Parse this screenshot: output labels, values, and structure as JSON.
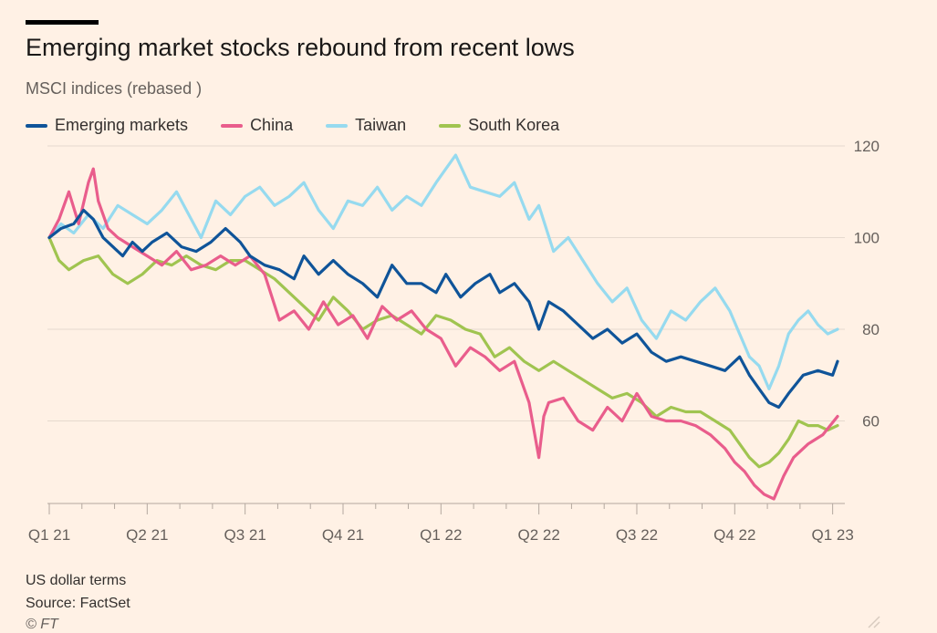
{
  "header": {
    "title": "Emerging market stocks rebound from recent lows",
    "subtitle": "MSCI indices (rebased )"
  },
  "footer": {
    "note": "US dollar terms",
    "source": "Source: FactSet",
    "copyright": "© FT"
  },
  "colors": {
    "background": "#fff1e5",
    "gridline": "#e6d9ce",
    "axis_text": "#66605c"
  },
  "chart_data": {
    "type": "line",
    "title": "Emerging market stocks rebound from recent lows",
    "subtitle": "MSCI indices (rebased )",
    "xlabel": "",
    "ylabel": "",
    "ylim": [
      42,
      120
    ],
    "y_ticks": [
      60,
      80,
      100,
      120
    ],
    "x_ticks": [
      "Q1 21",
      "Q2 21",
      "Q3 21",
      "Q4 21",
      "Q1 22",
      "Q2 22",
      "Q3 22",
      "Q4 22",
      "Q1 23"
    ],
    "x_tick_positions": [
      0,
      1,
      2,
      3,
      4,
      5,
      6,
      7,
      8
    ],
    "xlim": [
      0,
      8.05
    ],
    "grid": true,
    "y_axis_side": "right",
    "legend_position": "top-left",
    "series": [
      {
        "name": "Emerging markets",
        "color": "#0f5499",
        "x": [
          0,
          0.12,
          0.25,
          0.35,
          0.45,
          0.55,
          0.65,
          0.75,
          0.85,
          0.95,
          1.05,
          1.2,
          1.35,
          1.5,
          1.65,
          1.8,
          1.95,
          2.05,
          2.2,
          2.35,
          2.5,
          2.6,
          2.75,
          2.9,
          3.05,
          3.2,
          3.35,
          3.5,
          3.65,
          3.8,
          3.95,
          4.05,
          4.2,
          4.35,
          4.5,
          4.6,
          4.75,
          4.9,
          5.0,
          5.1,
          5.25,
          5.4,
          5.55,
          5.7,
          5.85,
          6.0,
          6.15,
          6.3,
          6.45,
          6.6,
          6.75,
          6.9,
          7.05,
          7.15,
          7.25,
          7.35,
          7.45,
          7.55,
          7.7,
          7.85,
          8.0,
          8.05
        ],
        "values": [
          100,
          102,
          103,
          106,
          104,
          100,
          98,
          96,
          99,
          97,
          99,
          101,
          98,
          97,
          99,
          102,
          99,
          96,
          94,
          93,
          91,
          96,
          92,
          95,
          92,
          90,
          87,
          94,
          90,
          90,
          88,
          92,
          87,
          90,
          92,
          88,
          90,
          86,
          80,
          86,
          84,
          81,
          78,
          80,
          77,
          79,
          75,
          73,
          74,
          73,
          72,
          71,
          74,
          70,
          67,
          64,
          63,
          66,
          70,
          71,
          70,
          73
        ]
      },
      {
        "name": "China",
        "color": "#e95d8c",
        "x": [
          0,
          0.1,
          0.2,
          0.3,
          0.4,
          0.45,
          0.5,
          0.6,
          0.7,
          0.85,
          1.0,
          1.15,
          1.3,
          1.45,
          1.6,
          1.75,
          1.9,
          2.05,
          2.2,
          2.35,
          2.5,
          2.65,
          2.8,
          2.95,
          3.1,
          3.25,
          3.4,
          3.55,
          3.7,
          3.85,
          4.0,
          4.15,
          4.3,
          4.45,
          4.6,
          4.75,
          4.9,
          5.0,
          5.05,
          5.1,
          5.25,
          5.4,
          5.55,
          5.7,
          5.85,
          6.0,
          6.15,
          6.3,
          6.45,
          6.6,
          6.75,
          6.9,
          7.0,
          7.1,
          7.2,
          7.3,
          7.4,
          7.5,
          7.6,
          7.75,
          7.9,
          8.05
        ],
        "values": [
          100,
          104,
          110,
          103,
          112,
          115,
          108,
          102,
          100,
          98,
          96,
          94,
          97,
          93,
          94,
          96,
          94,
          96,
          92,
          82,
          84,
          80,
          86,
          81,
          83,
          78,
          85,
          82,
          84,
          80,
          78,
          72,
          76,
          74,
          71,
          73,
          64,
          52,
          61,
          64,
          65,
          60,
          58,
          63,
          60,
          66,
          61,
          60,
          60,
          59,
          57,
          54,
          51,
          49,
          46,
          44,
          43,
          48,
          52,
          55,
          57,
          61
        ]
      },
      {
        "name": "Taiwan",
        "color": "#96daef",
        "x": [
          0,
          0.12,
          0.25,
          0.4,
          0.55,
          0.7,
          0.85,
          1.0,
          1.15,
          1.3,
          1.45,
          1.55,
          1.7,
          1.85,
          2.0,
          2.15,
          2.3,
          2.45,
          2.6,
          2.75,
          2.9,
          3.05,
          3.2,
          3.35,
          3.5,
          3.65,
          3.8,
          3.95,
          4.05,
          4.15,
          4.3,
          4.45,
          4.6,
          4.75,
          4.9,
          5.0,
          5.15,
          5.3,
          5.45,
          5.6,
          5.75,
          5.9,
          6.05,
          6.2,
          6.35,
          6.5,
          6.65,
          6.8,
          6.95,
          7.05,
          7.15,
          7.25,
          7.35,
          7.45,
          7.55,
          7.65,
          7.75,
          7.85,
          7.95,
          8.05
        ],
        "values": [
          100,
          103,
          101,
          105,
          102,
          107,
          105,
          103,
          106,
          110,
          104,
          100,
          108,
          105,
          109,
          111,
          107,
          109,
          112,
          106,
          102,
          108,
          107,
          111,
          106,
          109,
          107,
          112,
          115,
          118,
          111,
          110,
          109,
          112,
          104,
          107,
          97,
          100,
          95,
          90,
          86,
          89,
          82,
          78,
          84,
          82,
          86,
          89,
          84,
          79,
          74,
          72,
          67,
          72,
          79,
          82,
          84,
          81,
          79,
          80
        ]
      },
      {
        "name": "South Korea",
        "color": "#a0c450",
        "x": [
          0,
          0.1,
          0.2,
          0.35,
          0.5,
          0.65,
          0.8,
          0.95,
          1.1,
          1.25,
          1.4,
          1.55,
          1.7,
          1.85,
          2.0,
          2.15,
          2.3,
          2.45,
          2.6,
          2.75,
          2.9,
          3.05,
          3.2,
          3.35,
          3.5,
          3.65,
          3.8,
          3.95,
          4.1,
          4.25,
          4.4,
          4.55,
          4.7,
          4.85,
          5.0,
          5.15,
          5.3,
          5.45,
          5.6,
          5.75,
          5.9,
          6.05,
          6.2,
          6.35,
          6.5,
          6.65,
          6.8,
          6.95,
          7.05,
          7.15,
          7.25,
          7.35,
          7.45,
          7.55,
          7.65,
          7.75,
          7.85,
          7.95,
          8.05
        ],
        "values": [
          100,
          95,
          93,
          95,
          96,
          92,
          90,
          92,
          95,
          94,
          96,
          94,
          93,
          95,
          95,
          93,
          91,
          88,
          85,
          82,
          87,
          84,
          80,
          82,
          83,
          81,
          79,
          83,
          82,
          80,
          79,
          74,
          76,
          73,
          71,
          73,
          71,
          69,
          67,
          65,
          66,
          64,
          61,
          63,
          62,
          62,
          60,
          58,
          55,
          52,
          50,
          51,
          53,
          56,
          60,
          59,
          59,
          58,
          59
        ]
      }
    ]
  }
}
